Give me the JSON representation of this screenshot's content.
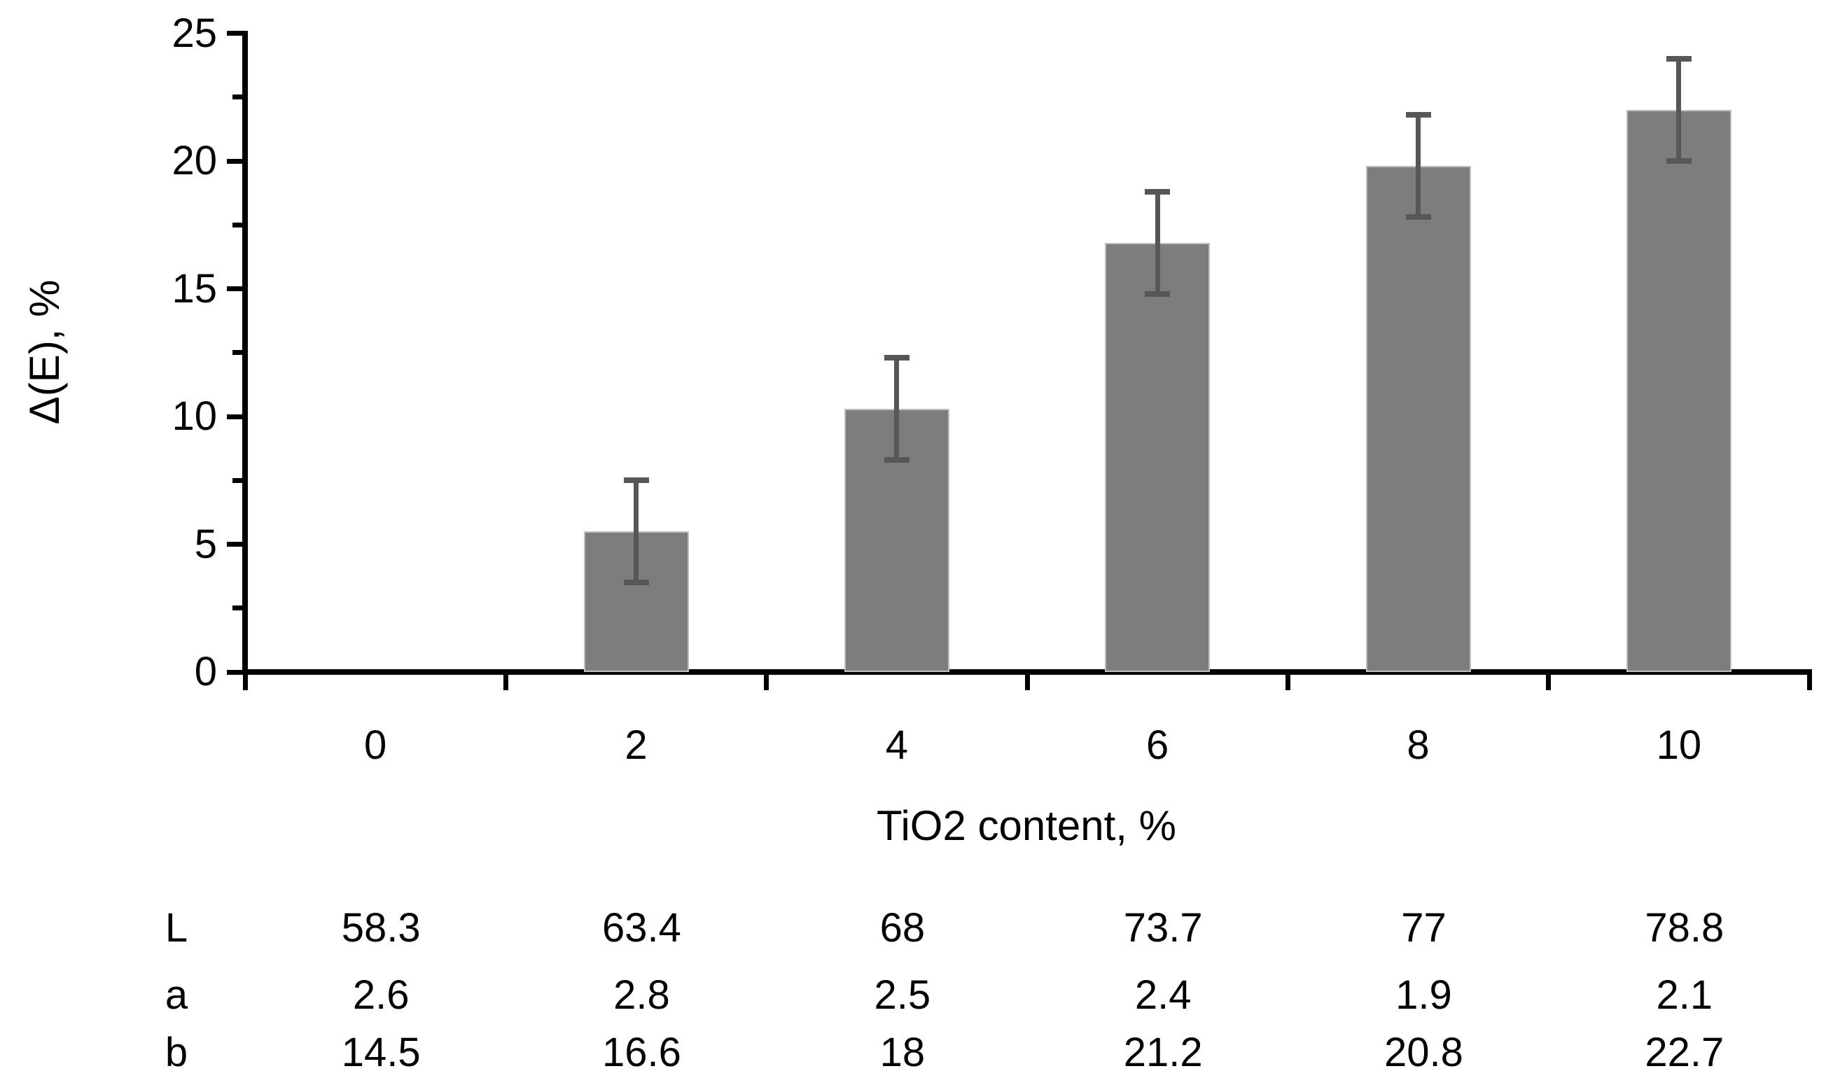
{
  "chart_data": {
    "type": "bar",
    "title": "",
    "categories": [
      "0",
      "2",
      "4",
      "6",
      "8",
      "10"
    ],
    "values": [
      0,
      5.5,
      10.3,
      16.8,
      19.8,
      22.0
    ],
    "errors": [
      0,
      2,
      2,
      2,
      2,
      2
    ],
    "xlabel": "TiO2 content, %",
    "ylabel": "Δ(E), %",
    "ylim": [
      0,
      25
    ],
    "y_major_ticks": [
      "0",
      "5",
      "10",
      "15",
      "20",
      "25"
    ],
    "y_major_tick_values": [
      0,
      5,
      10,
      15,
      20,
      25
    ],
    "y_minor_tick_values": [
      2.5,
      7.5,
      12.5,
      17.5,
      22.5
    ],
    "grid": false,
    "legend": false,
    "bar_color": "#7d7d7d",
    "bar_border_color": "#bfbfbf",
    "error_bar_color": "#575757",
    "axis_color": "#000000",
    "text_color": "#000000"
  },
  "table": {
    "rows": [
      {
        "label": "L",
        "values": [
          "58.3",
          "63.4",
          "68",
          "73.7",
          "77",
          "78.8"
        ]
      },
      {
        "label": "a",
        "values": [
          "2.6",
          "2.8",
          "2.5",
          "2.4",
          "1.9",
          "2.1"
        ]
      },
      {
        "label": "b",
        "values": [
          "14.5",
          "16.6",
          "18",
          "21.2",
          "20.8",
          "22.7"
        ]
      }
    ]
  }
}
